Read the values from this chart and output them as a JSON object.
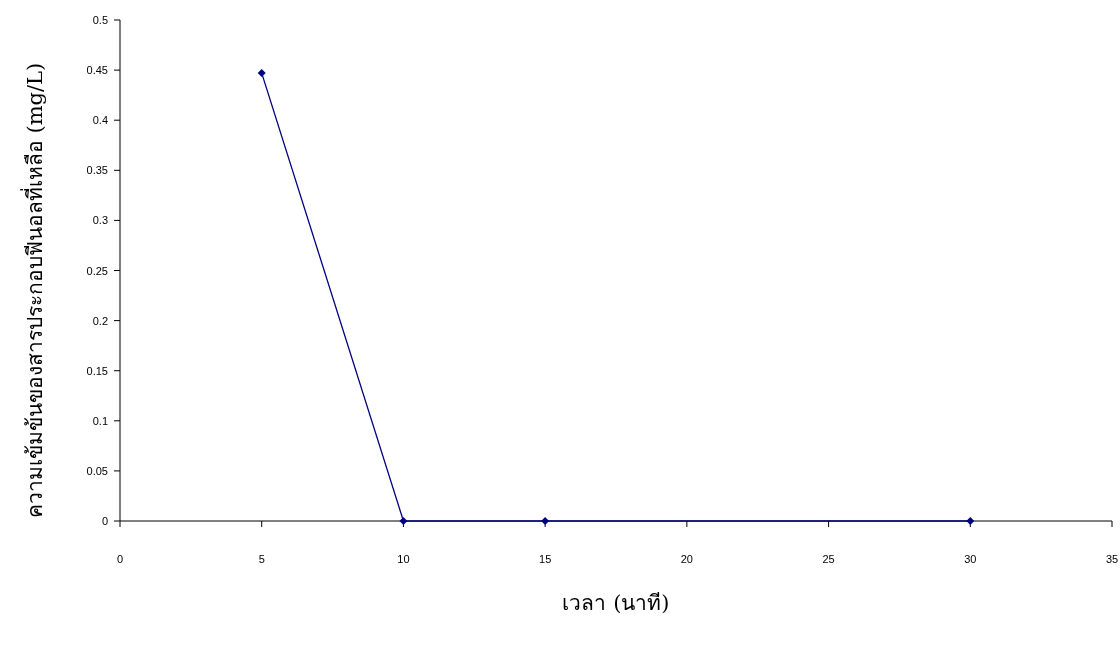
{
  "chart_data": {
    "type": "line",
    "xlabel": "เวลา (นาที)",
    "ylabel": "ความเข้มข้นของสารประกอบฟีนอลที่เหลือ (mg/L)",
    "x": [
      5,
      10,
      15,
      30
    ],
    "series": [
      {
        "color": "#000080",
        "values": [
          0.447,
          0,
          0,
          0
        ]
      }
    ],
    "xlim": [
      0,
      35
    ],
    "xticks": [
      0,
      5,
      10,
      15,
      20,
      25,
      30,
      35
    ],
    "ylim": [
      0,
      0.5
    ],
    "yticks": [
      0,
      0.05,
      0.1,
      0.15,
      0.2,
      0.25,
      0.3,
      0.35,
      0.4,
      0.45,
      0.5
    ],
    "marker": "diamond",
    "line_style": "solid"
  }
}
